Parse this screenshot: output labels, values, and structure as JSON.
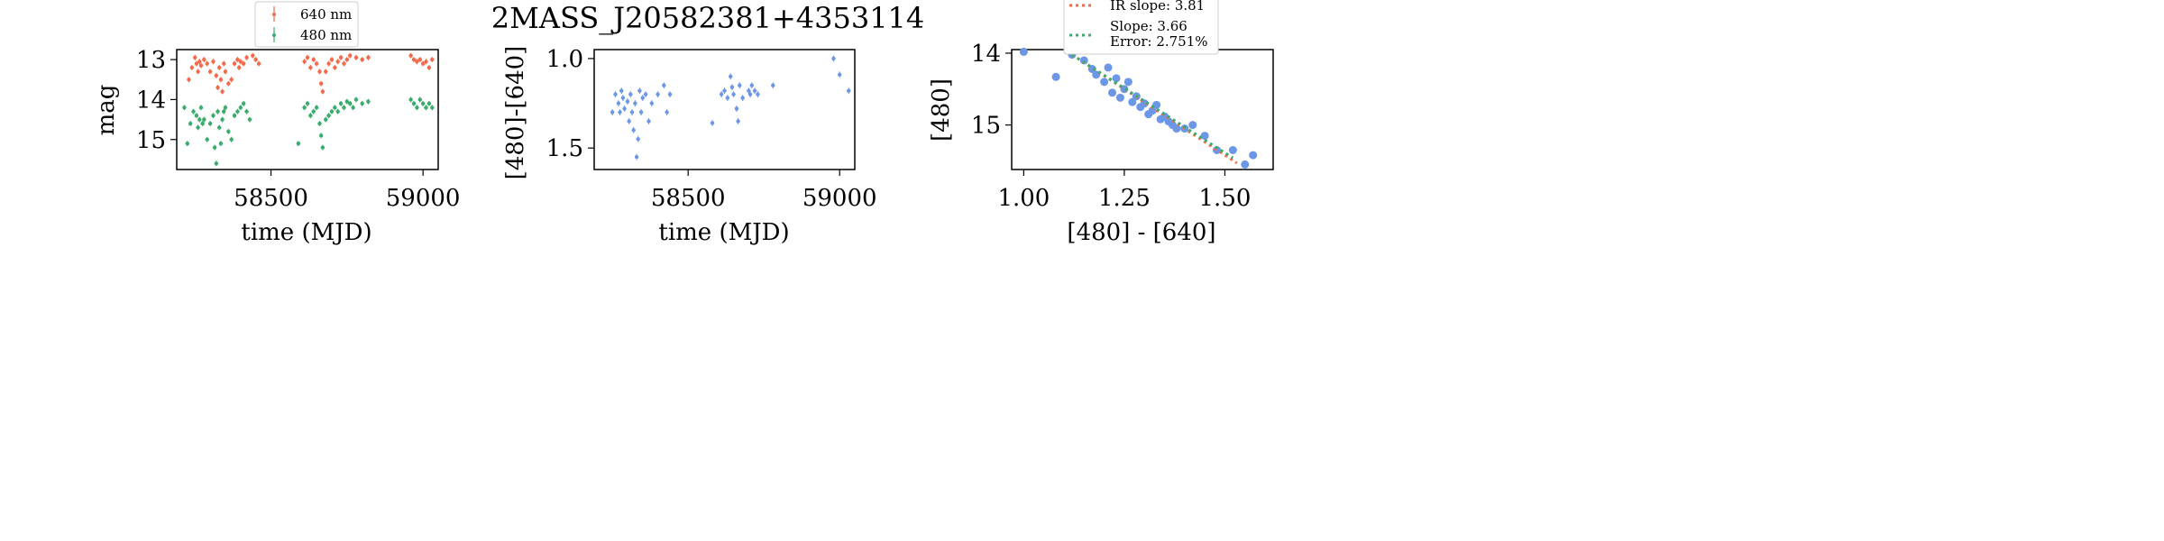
{
  "title": "2MASS_J20582381+4353114",
  "colors": {
    "red": "#f26b4d",
    "green": "#3aac6c",
    "blue": "#6c96e6",
    "axis": "#000000"
  },
  "chart_data": [
    {
      "type": "scatter",
      "xlabel": "time (MJD)",
      "ylabel": "mag",
      "xlim": [
        58190,
        59050
      ],
      "ylim": [
        15.75,
        12.75
      ],
      "y_inverted": true,
      "xticks": [
        "58500",
        "59000"
      ],
      "yticks": [
        "13",
        "14",
        "15"
      ],
      "legend_position": "top-center",
      "series": [
        {
          "name": "640 nm",
          "color": "#f26b4d",
          "x": [
            58230,
            58240,
            58250,
            58255,
            58260,
            58265,
            58270,
            58280,
            58290,
            58300,
            58310,
            58320,
            58325,
            58330,
            58335,
            58340,
            58345,
            58350,
            58360,
            58370,
            58380,
            58390,
            58395,
            58400,
            58410,
            58420,
            58440,
            58450,
            58460,
            58610,
            58620,
            58630,
            58640,
            58650,
            58660,
            58665,
            58670,
            58680,
            58690,
            58700,
            58710,
            58720,
            58730,
            58740,
            58750,
            58760,
            58780,
            58800,
            58820,
            58960,
            58970,
            58980,
            58990,
            59000,
            59010,
            59020,
            59030
          ],
          "y": [
            13.5,
            13.2,
            12.95,
            13.1,
            13.3,
            13.05,
            13.15,
            13.0,
            13.1,
            13.3,
            13.05,
            13.4,
            13.7,
            13.2,
            13.5,
            13.8,
            13.1,
            13.3,
            13.6,
            13.5,
            13.1,
            13.0,
            13.2,
            13.05,
            13.1,
            12.95,
            12.9,
            13.0,
            13.1,
            13.05,
            12.95,
            13.2,
            13.0,
            13.1,
            13.3,
            13.6,
            13.8,
            13.3,
            13.1,
            13.0,
            13.2,
            13.05,
            12.95,
            13.1,
            13.0,
            12.9,
            12.95,
            13.0,
            12.95,
            12.9,
            13.0,
            13.05,
            13.0,
            13.1,
            13.05,
            13.2,
            13.0
          ]
        },
        {
          "name": "480 nm",
          "color": "#3aac6c",
          "x": [
            58215,
            58225,
            58235,
            58245,
            58255,
            58260,
            58265,
            58270,
            58275,
            58280,
            58290,
            58300,
            58310,
            58315,
            58320,
            58325,
            58330,
            58335,
            58340,
            58345,
            58350,
            58360,
            58370,
            58380,
            58390,
            58400,
            58410,
            58420,
            58430,
            58590,
            58610,
            58620,
            58630,
            58640,
            58650,
            58660,
            58665,
            58670,
            58680,
            58690,
            58700,
            58710,
            58720,
            58730,
            58740,
            58750,
            58760,
            58770,
            58780,
            58800,
            58820,
            58960,
            58970,
            58980,
            58990,
            59000,
            59010,
            59020,
            59030
          ],
          "y": [
            14.2,
            15.1,
            14.6,
            14.3,
            14.4,
            14.7,
            14.5,
            14.2,
            14.6,
            14.5,
            15.0,
            14.6,
            14.4,
            15.2,
            15.6,
            14.3,
            14.7,
            15.1,
            14.5,
            14.3,
            14.2,
            14.8,
            15.0,
            14.4,
            14.3,
            14.2,
            14.1,
            14.3,
            14.5,
            15.1,
            14.2,
            14.1,
            14.4,
            14.3,
            14.2,
            14.6,
            14.9,
            15.2,
            14.5,
            14.4,
            14.3,
            14.2,
            14.3,
            14.1,
            14.2,
            14.05,
            14.1,
            14.2,
            14.0,
            14.1,
            14.05,
            14.0,
            14.1,
            14.2,
            14.0,
            14.1,
            14.2,
            14.1,
            14.2
          ]
        }
      ]
    },
    {
      "type": "scatter",
      "xlabel": "time (MJD)",
      "ylabel": "[480]-[640]",
      "xlim": [
        58190,
        59050
      ],
      "ylim": [
        1.62,
        0.95
      ],
      "y_inverted": true,
      "xticks": [
        "58500",
        "59000"
      ],
      "yticks": [
        "1.0",
        "1.5"
      ],
      "series": [
        {
          "name": "",
          "color": "#6c96e6",
          "x": [
            58250,
            58260,
            58270,
            58275,
            58280,
            58285,
            58290,
            58300,
            58305,
            58310,
            58315,
            58320,
            58325,
            58330,
            58335,
            58340,
            58345,
            58350,
            58360,
            58370,
            58380,
            58400,
            58420,
            58430,
            58440,
            58580,
            58610,
            58620,
            58630,
            58640,
            58645,
            58650,
            58660,
            58665,
            58670,
            58680,
            58700,
            58705,
            58710,
            58720,
            58730,
            58780,
            58980,
            59000,
            59030
          ],
          "y": [
            1.3,
            1.2,
            1.25,
            1.3,
            1.18,
            1.22,
            1.28,
            1.24,
            1.35,
            1.2,
            1.3,
            1.4,
            1.25,
            1.55,
            1.45,
            1.18,
            1.3,
            1.22,
            1.2,
            1.35,
            1.25,
            1.2,
            1.15,
            1.3,
            1.2,
            1.36,
            1.2,
            1.18,
            1.22,
            1.1,
            1.16,
            1.2,
            1.28,
            1.35,
            1.15,
            1.22,
            1.18,
            1.2,
            1.15,
            1.18,
            1.2,
            1.15,
            1.0,
            1.09,
            1.18
          ]
        }
      ]
    },
    {
      "type": "scatter",
      "xlabel": "[480] - [640]",
      "ylabel": "[480]",
      "xlim": [
        0.97,
        1.62
      ],
      "ylim": [
        15.62,
        13.95
      ],
      "y_inverted": true,
      "xticks": [
        "1.00",
        "1.25",
        "1.50"
      ],
      "yticks": [
        "14",
        "15"
      ],
      "legend_position": "top-center",
      "legend": [
        {
          "label": "IR slope: 3.81",
          "color": "#f26b4d",
          "style": "dotted"
        },
        {
          "label": "Slope: 3.66\nError: 2.751%",
          "color": "#3aac6c",
          "style": "dotted"
        }
      ],
      "series": [
        {
          "name": "",
          "color": "#6c96e6",
          "x": [
            1.0,
            1.08,
            1.12,
            1.15,
            1.17,
            1.18,
            1.2,
            1.21,
            1.22,
            1.23,
            1.24,
            1.25,
            1.26,
            1.27,
            1.28,
            1.29,
            1.3,
            1.31,
            1.32,
            1.33,
            1.34,
            1.35,
            1.36,
            1.37,
            1.38,
            1.4,
            1.42,
            1.45,
            1.48,
            1.52,
            1.55,
            1.57
          ],
          "y": [
            13.98,
            14.33,
            14.02,
            14.1,
            14.22,
            14.3,
            14.4,
            14.2,
            14.55,
            14.35,
            14.62,
            14.5,
            14.4,
            14.68,
            14.6,
            14.75,
            14.7,
            14.85,
            14.8,
            14.72,
            14.92,
            14.88,
            14.95,
            15.0,
            15.05,
            15.05,
            15.0,
            15.15,
            15.35,
            15.35,
            15.55,
            15.42
          ]
        }
      ],
      "fit_lines": [
        {
          "name": "IR slope: 3.81",
          "color": "#f26b4d",
          "x": [
            1.12,
            1.53
          ],
          "y": [
            14.02,
            15.53
          ]
        },
        {
          "name": "Slope: 3.66",
          "color": "#3aac6c",
          "x": [
            1.12,
            1.52
          ],
          "y": [
            14.02,
            15.46
          ]
        }
      ]
    }
  ]
}
